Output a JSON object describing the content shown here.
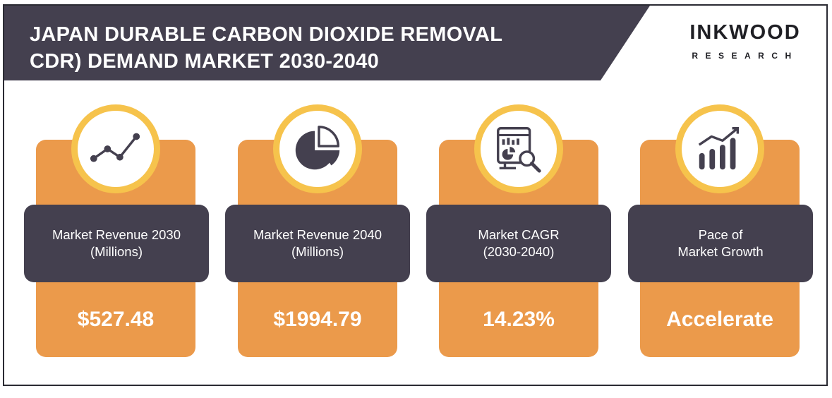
{
  "header": {
    "title_line1": "JAPAN DURABLE CARBON DIOXIDE REMOVAL",
    "title_line2": "CDR) DEMAND MARKET 2030-2040"
  },
  "logo": {
    "main": "INKWOOD",
    "sub": "RESEARCH"
  },
  "cards": [
    {
      "label_line1": "Market Revenue 2030",
      "label_line2": "(Millions)",
      "value": "$527.48",
      "icon": "line-chart-icon"
    },
    {
      "label_line1": "Market Revenue 2040",
      "label_line2": "(Millions)",
      "value": "$1994.79",
      "icon": "pie-chart-icon"
    },
    {
      "label_line1": "Market CAGR",
      "label_line2": "(2030-2040)",
      "value": "14.23%",
      "icon": "report-analysis-icon"
    },
    {
      "label_line1": "Pace of",
      "label_line2": "Market Growth",
      "value": "Accelerate",
      "icon": "growth-bars-icon"
    }
  ],
  "colors": {
    "header": "#44404f",
    "card": "#eb9a4b",
    "ring": "#f6c34c",
    "icon": "#44404f"
  }
}
